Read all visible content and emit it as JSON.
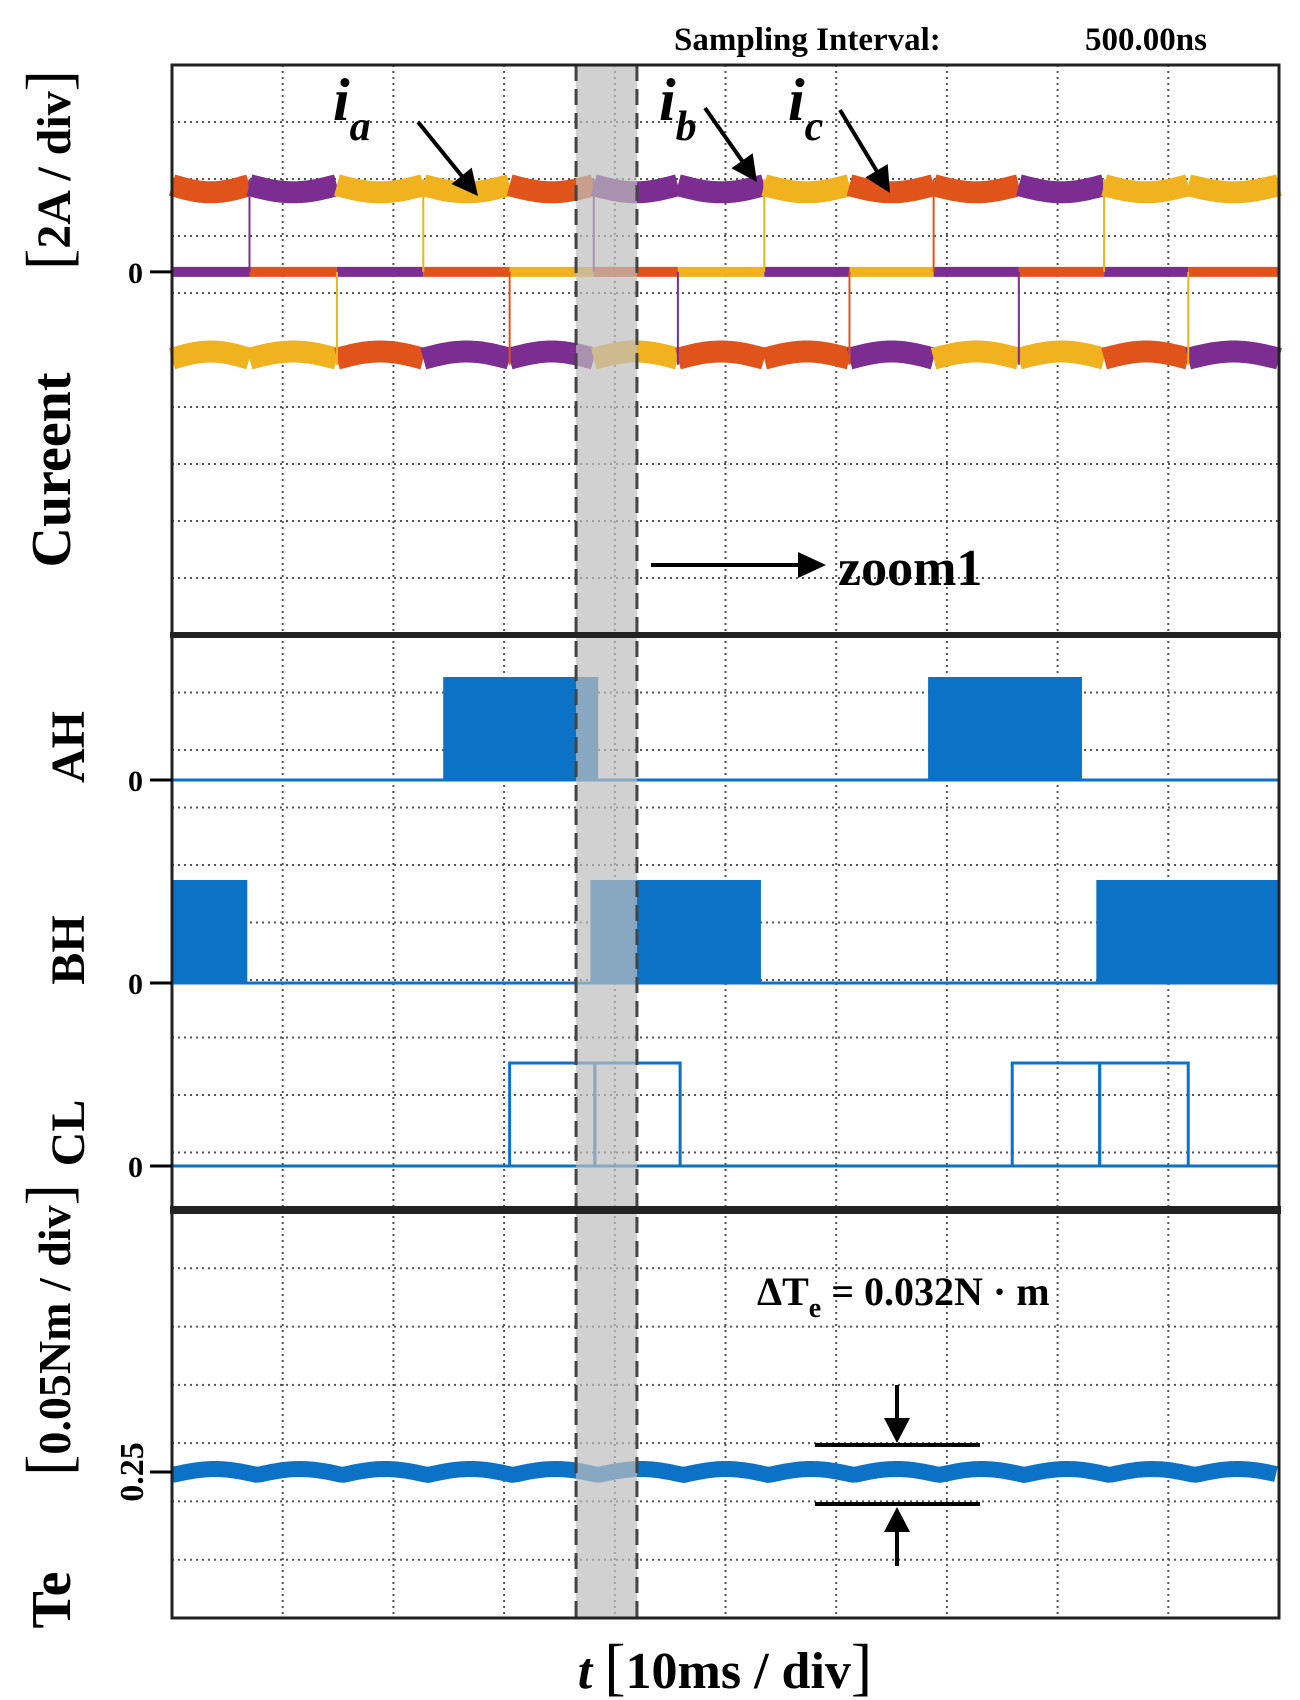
{
  "chart_data": {
    "type": "line",
    "title": "Sampling Interval:    500.00ns",
    "sampling_interval": {
      "label": "Sampling Interval:",
      "value": "500.00ns"
    },
    "xlabel": "t",
    "xlabel_unit": "10ms / div",
    "time_per_div_ms": 10,
    "x_divisions": 10,
    "xlim_ms": [
      0,
      100
    ],
    "highlight_window_ms": [
      36.5,
      42.0
    ],
    "zoom_label": "zoom1",
    "colors": {
      "ia": "#F0B21E",
      "ib": "#E0541C",
      "ic": "#7B2D91",
      "gate": "#0B72C6",
      "grid": "#555555",
      "highlight": "#BDBDBD"
    },
    "panels": [
      {
        "id": "current",
        "ylabel": "Cureent",
        "yunit": "2A / div",
        "zero_label": "0",
        "divisions": 10,
        "zero_div_from_top": 2.7,
        "conduction_level_div": 1.4,
        "series": [
          {
            "name": "ia",
            "label_main": "i",
            "label_sub": "a"
          },
          {
            "name": "ib",
            "label_main": "i",
            "label_sub": "b"
          },
          {
            "name": "ic",
            "label_main": "i",
            "label_sub": "c"
          }
        ],
        "commutation_times_ms": [
          7.0,
          14.9,
          22.7,
          30.5,
          38.1,
          45.7,
          53.5,
          61.2,
          68.8,
          76.5,
          84.2,
          91.8
        ],
        "sequence_positive": [
          "ib",
          "ic",
          "ia",
          "ia",
          "ib",
          "ic",
          "ic",
          "ia",
          "ib",
          "ib",
          "ic",
          "ia",
          "ia"
        ],
        "sequence_negative": [
          "ia",
          "ia",
          "ib",
          "ic",
          "ic",
          "ia",
          "ib",
          "ib",
          "ic",
          "ia",
          "ia",
          "ib",
          "ic"
        ]
      },
      {
        "id": "gates",
        "signals": [
          {
            "name": "AH",
            "zero_label": "0",
            "style": "filled",
            "high_intervals_ms": [
              [
                24.5,
                38.5
              ],
              [
                68.3,
                82.2
              ]
            ]
          },
          {
            "name": "BH",
            "zero_label": "0",
            "style": "filled",
            "high_intervals_ms": [
              [
                0,
                6.8
              ],
              [
                37.8,
                53.2
              ],
              [
                83.5,
                100
              ]
            ]
          },
          {
            "name": "CL",
            "zero_label": "0",
            "style": "outline",
            "high_intervals_ms": [
              [
                30.5,
                38.2
              ],
              [
                38.2,
                45.9
              ],
              [
                75.9,
                83.8
              ],
              [
                83.8,
                91.8
              ]
            ]
          }
        ]
      },
      {
        "id": "torque",
        "ylabel": "Te",
        "yunit": "0.05Nm / div",
        "ref_label": "0.25",
        "ref_value_Nm": 0.25,
        "mean_value_Nm": 0.25,
        "ripple_Nm": 0.032,
        "annotation": {
          "delta": "ΔT",
          "sub": "e",
          "expr": " = 0.032N · m"
        }
      }
    ]
  }
}
